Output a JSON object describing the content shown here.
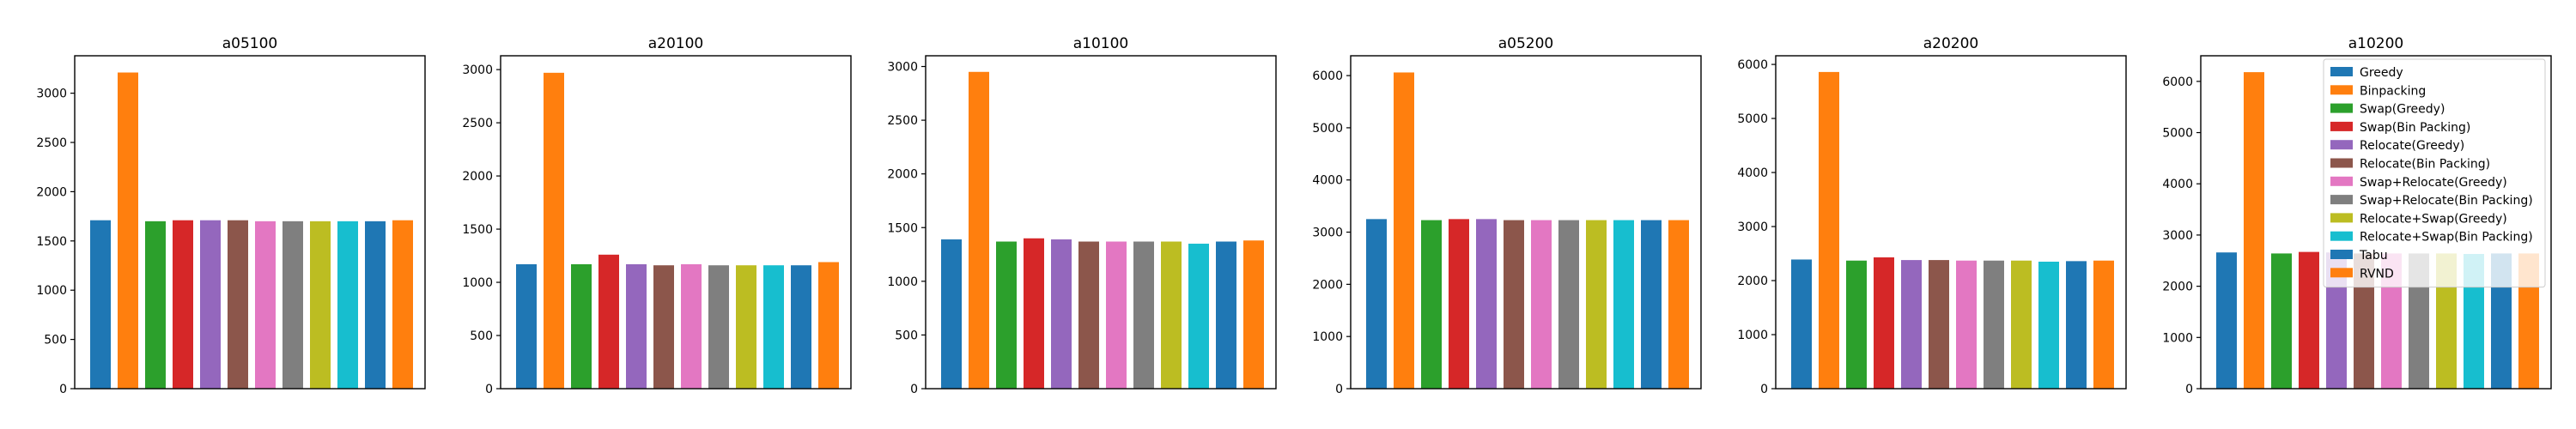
{
  "chart_data": [
    {
      "type": "bar",
      "title": "a05100",
      "ylim": [
        0,
        3380
      ],
      "yticks": [
        0,
        500,
        1000,
        1500,
        2000,
        2500,
        3000
      ],
      "values": [
        1710,
        3210,
        1700,
        1710,
        1710,
        1710,
        1700,
        1700,
        1700,
        1700,
        1700,
        1710
      ]
    },
    {
      "type": "bar",
      "title": "a20100",
      "ylim": [
        0,
        3130
      ],
      "yticks": [
        0,
        500,
        1000,
        1500,
        2000,
        2500,
        3000
      ],
      "values": [
        1170,
        2970,
        1170,
        1260,
        1170,
        1160,
        1170,
        1160,
        1160,
        1160,
        1160,
        1190
      ]
    },
    {
      "type": "bar",
      "title": "a10100",
      "ylim": [
        0,
        3100
      ],
      "yticks": [
        0,
        500,
        1000,
        1500,
        2000,
        2500,
        3000
      ],
      "values": [
        1390,
        2950,
        1370,
        1400,
        1390,
        1370,
        1370,
        1370,
        1370,
        1350,
        1370,
        1380
      ]
    },
    {
      "type": "bar",
      "title": "a05200",
      "ylim": [
        0,
        6380
      ],
      "yticks": [
        0,
        1000,
        2000,
        3000,
        4000,
        5000,
        6000
      ],
      "values": [
        3250,
        6060,
        3230,
        3250,
        3250,
        3230,
        3230,
        3230,
        3230,
        3230,
        3230,
        3230
      ]
    },
    {
      "type": "bar",
      "title": "a20200",
      "ylim": [
        0,
        6160
      ],
      "yticks": [
        0,
        1000,
        2000,
        3000,
        4000,
        5000,
        6000
      ],
      "values": [
        2390,
        5860,
        2370,
        2430,
        2380,
        2380,
        2370,
        2370,
        2370,
        2350,
        2360,
        2370
      ]
    },
    {
      "type": "bar",
      "title": "a10200",
      "ylim": [
        0,
        6500
      ],
      "yticks": [
        0,
        1000,
        2000,
        3000,
        4000,
        5000,
        6000
      ],
      "values": [
        2660,
        6180,
        2640,
        2670,
        2660,
        2640,
        2640,
        2640,
        2640,
        2630,
        2640,
        2640
      ],
      "legend": {
        "location": "upper right"
      }
    }
  ],
  "series": [
    {
      "name": "Greedy",
      "color": "#1f77b4"
    },
    {
      "name": "Binpacking",
      "color": "#ff7f0e"
    },
    {
      "name": "Swap(Greedy)",
      "color": "#2ca02c"
    },
    {
      "name": "Swap(Bin Packing)",
      "color": "#d62728"
    },
    {
      "name": "Relocate(Greedy)",
      "color": "#9467bd"
    },
    {
      "name": "Relocate(Bin Packing)",
      "color": "#8c564b"
    },
    {
      "name": "Swap+Relocate(Greedy)",
      "color": "#e377c2"
    },
    {
      "name": "Swap+Relocate(Bin Packing)",
      "color": "#7f7f7f"
    },
    {
      "name": "Relocate+Swap(Greedy)",
      "color": "#bcbd22"
    },
    {
      "name": "Relocate+Swap(Bin Packing)",
      "color": "#17becf"
    },
    {
      "name": "Tabu",
      "color": "#1f77b4"
    },
    {
      "name": "RVND",
      "color": "#ff7f0e"
    }
  ]
}
